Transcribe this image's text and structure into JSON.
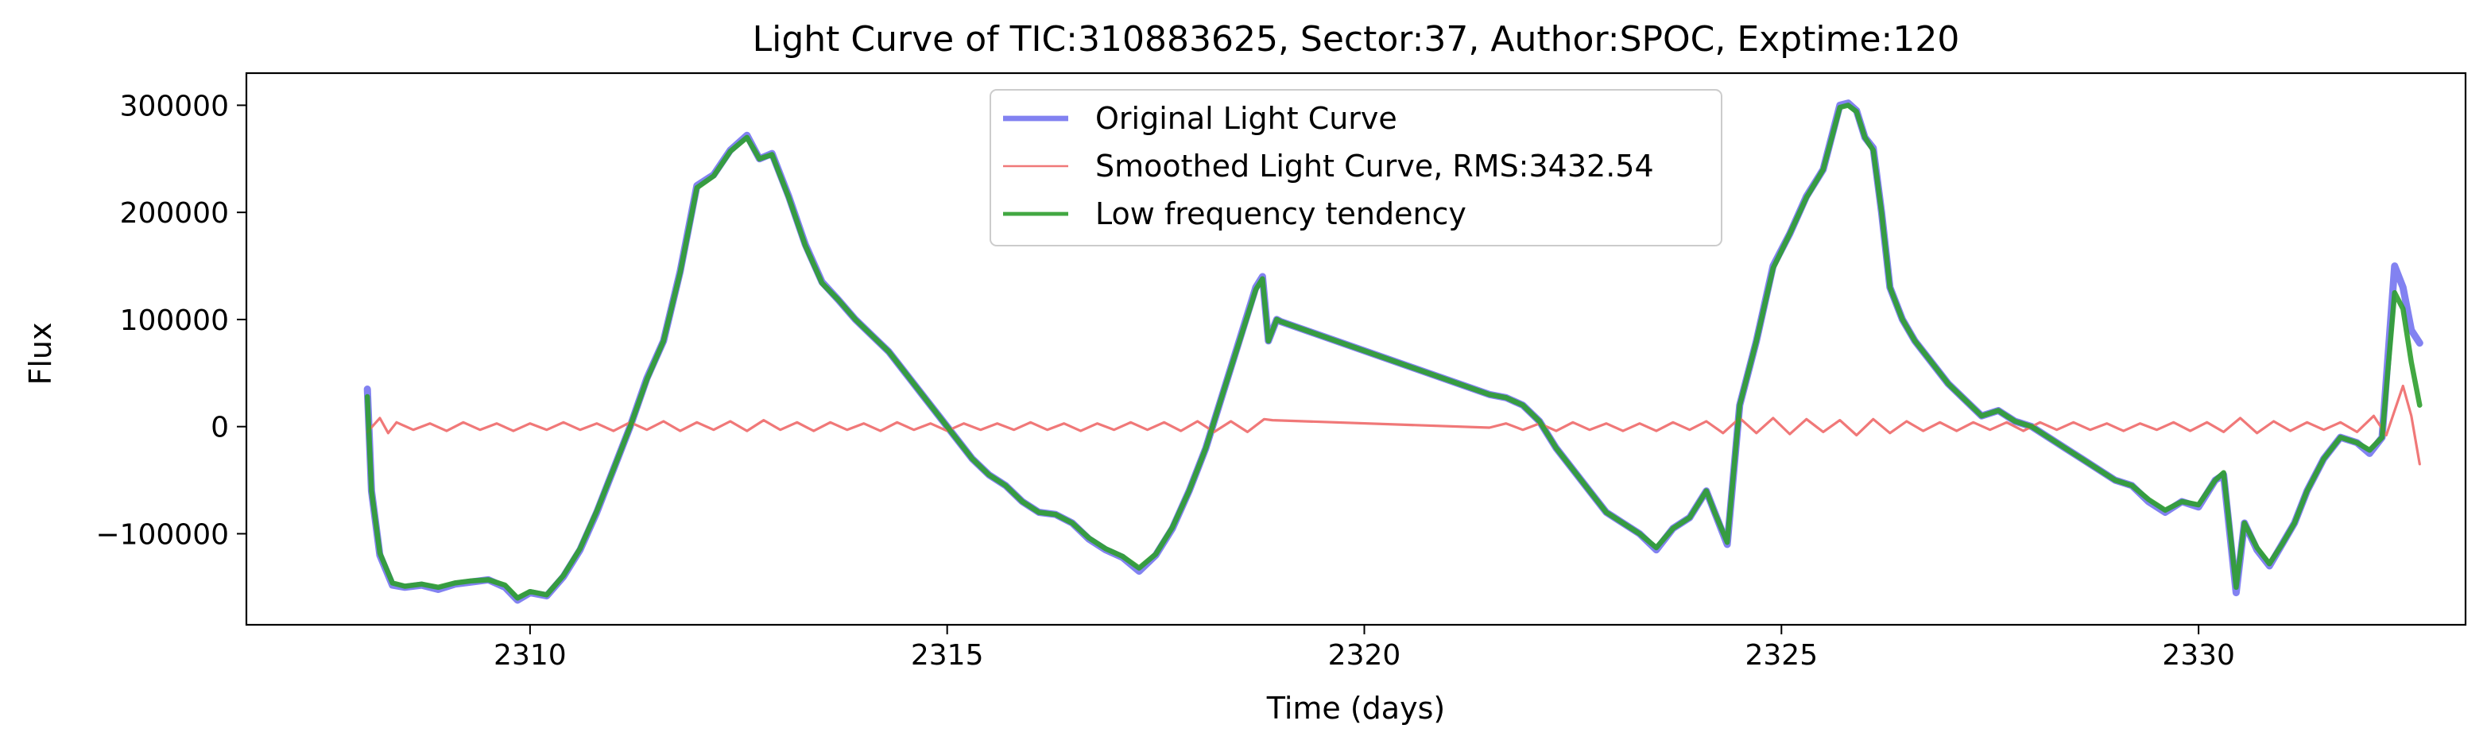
{
  "chart_data": {
    "type": "line",
    "title": "Light Curve of TIC:310883625, Sector:37, Author:SPOC, Exptime:120",
    "xlabel": "Time (days)",
    "ylabel": "Flux",
    "xlim": [
      2306.6,
      2333.2
    ],
    "ylim": [
      -185000,
      330000
    ],
    "xticks": [
      2310,
      2315,
      2320,
      2325,
      2330
    ],
    "xtick_labels": [
      "2310",
      "2315",
      "2320",
      "2325",
      "2330"
    ],
    "yticks": [
      -100000,
      0,
      100000,
      200000,
      300000
    ],
    "ytick_labels": [
      "−100000",
      "0",
      "100000",
      "200000",
      "300000"
    ],
    "grid": false,
    "legend_position": "top-center",
    "series": [
      {
        "name": "Original Light Curve",
        "color": "#7b7bf0",
        "style": "thick",
        "x": [
          2308.05,
          2308.1,
          2308.2,
          2308.35,
          2308.5,
          2308.7,
          2308.9,
          2309.1,
          2309.3,
          2309.5,
          2309.7,
          2309.85,
          2310.0,
          2310.2,
          2310.4,
          2310.6,
          2310.8,
          2311.0,
          2311.2,
          2311.4,
          2311.6,
          2311.8,
          2312.0,
          2312.2,
          2312.4,
          2312.6,
          2312.75,
          2312.9,
          2313.1,
          2313.3,
          2313.5,
          2313.7,
          2313.9,
          2314.1,
          2314.3,
          2314.5,
          2314.7,
          2314.9,
          2315.1,
          2315.3,
          2315.5,
          2315.7,
          2315.9,
          2316.1,
          2316.3,
          2316.5,
          2316.7,
          2316.9,
          2317.1,
          2317.3,
          2317.5,
          2317.7,
          2317.9,
          2318.1,
          2318.3,
          2318.5,
          2318.7,
          2318.78,
          2318.85,
          2318.95,
          2319.0,
          2321.5,
          2321.7,
          2321.9,
          2322.1,
          2322.3,
          2322.5,
          2322.7,
          2322.9,
          2323.1,
          2323.3,
          2323.5,
          2323.7,
          2323.9,
          2324.1,
          2324.2,
          2324.35,
          2324.5,
          2324.7,
          2324.9,
          2325.1,
          2325.3,
          2325.5,
          2325.7,
          2325.8,
          2325.9,
          2326.0,
          2326.1,
          2326.2,
          2326.3,
          2326.45,
          2326.6,
          2326.8,
          2327.0,
          2327.2,
          2327.4,
          2327.6,
          2327.8,
          2328.0,
          2328.2,
          2328.4,
          2328.6,
          2328.8,
          2329.0,
          2329.2,
          2329.4,
          2329.6,
          2329.8,
          2330.0,
          2330.2,
          2330.3,
          2330.45,
          2330.55,
          2330.7,
          2330.85,
          2331.0,
          2331.15,
          2331.3,
          2331.5,
          2331.7,
          2331.9,
          2332.05,
          2332.2,
          2332.35,
          2332.45,
          2332.55,
          2332.65
        ],
        "y": [
          35000,
          -60000,
          -120000,
          -148000,
          -150000,
          -148000,
          -152000,
          -147000,
          -145000,
          -143000,
          -150000,
          -162000,
          -155000,
          -158000,
          -140000,
          -115000,
          -80000,
          -40000,
          0,
          45000,
          80000,
          145000,
          225000,
          235000,
          258000,
          272000,
          250000,
          255000,
          215000,
          170000,
          135000,
          118000,
          100000,
          85000,
          70000,
          50000,
          30000,
          10000,
          -10000,
          -30000,
          -45000,
          -55000,
          -70000,
          -80000,
          -82000,
          -90000,
          -105000,
          -115000,
          -122000,
          -135000,
          -120000,
          -95000,
          -60000,
          -20000,
          30000,
          80000,
          130000,
          140000,
          80000,
          100000,
          98000,
          30000,
          27000,
          20000,
          5000,
          -20000,
          -40000,
          -60000,
          -80000,
          -90000,
          -100000,
          -115000,
          -95000,
          -85000,
          -60000,
          -80000,
          -110000,
          20000,
          80000,
          150000,
          180000,
          215000,
          240000,
          300000,
          302000,
          295000,
          270000,
          260000,
          200000,
          130000,
          100000,
          80000,
          60000,
          40000,
          25000,
          10000,
          15000,
          5000,
          0,
          -10000,
          -20000,
          -30000,
          -40000,
          -50000,
          -55000,
          -70000,
          -80000,
          -70000,
          -75000,
          -50000,
          -45000,
          -155000,
          -90000,
          -115000,
          -130000,
          -110000,
          -90000,
          -60000,
          -30000,
          -10000,
          -15000,
          -25000,
          -10000,
          150000,
          130000,
          90000,
          78000
        ]
      },
      {
        "name": "Smoothed Light Curve, RMS:3432.54",
        "color": "#f07878",
        "style": "thin",
        "x": [
          2308.05,
          2308.2,
          2308.3,
          2308.4,
          2308.6,
          2308.8,
          2309.0,
          2309.2,
          2309.4,
          2309.6,
          2309.8,
          2310.0,
          2310.2,
          2310.4,
          2310.6,
          2310.8,
          2311.0,
          2311.2,
          2311.4,
          2311.6,
          2311.8,
          2312.0,
          2312.2,
          2312.4,
          2312.6,
          2312.8,
          2313.0,
          2313.2,
          2313.4,
          2313.6,
          2313.8,
          2314.0,
          2314.2,
          2314.4,
          2314.6,
          2314.8,
          2315.0,
          2315.2,
          2315.4,
          2315.6,
          2315.8,
          2316.0,
          2316.2,
          2316.4,
          2316.6,
          2316.8,
          2317.0,
          2317.2,
          2317.4,
          2317.6,
          2317.8,
          2318.0,
          2318.2,
          2318.4,
          2318.6,
          2318.8,
          2318.9,
          2321.5,
          2321.7,
          2321.9,
          2322.1,
          2322.3,
          2322.5,
          2322.7,
          2322.9,
          2323.1,
          2323.3,
          2323.5,
          2323.7,
          2323.9,
          2324.1,
          2324.3,
          2324.5,
          2324.7,
          2324.9,
          2325.1,
          2325.3,
          2325.5,
          2325.7,
          2325.9,
          2326.1,
          2326.3,
          2326.5,
          2326.7,
          2326.9,
          2327.1,
          2327.3,
          2327.5,
          2327.7,
          2327.9,
          2328.1,
          2328.3,
          2328.5,
          2328.7,
          2328.9,
          2329.1,
          2329.3,
          2329.5,
          2329.7,
          2329.9,
          2330.1,
          2330.3,
          2330.5,
          2330.7,
          2330.9,
          2331.1,
          2331.3,
          2331.5,
          2331.7,
          2331.9,
          2332.1,
          2332.25,
          2332.35,
          2332.45,
          2332.55,
          2332.65
        ],
        "y": [
          -5000,
          8000,
          -6000,
          4000,
          -3000,
          3000,
          -4000,
          4000,
          -3000,
          3000,
          -4000,
          3000,
          -3000,
          4000,
          -3000,
          3000,
          -4000,
          4000,
          -3000,
          5000,
          -4000,
          4000,
          -3000,
          5000,
          -4000,
          6000,
          -3000,
          4000,
          -4000,
          4000,
          -3000,
          3000,
          -4000,
          4000,
          -3000,
          3000,
          -4000,
          3000,
          -3000,
          3000,
          -3000,
          4000,
          -3000,
          3000,
          -4000,
          3000,
          -3000,
          4000,
          -3000,
          4000,
          -4000,
          5000,
          -5000,
          5000,
          -5000,
          7000,
          6000,
          -1000,
          3000,
          -3000,
          3000,
          -4000,
          4000,
          -3000,
          3000,
          -4000,
          3000,
          -4000,
          4000,
          -3000,
          5000,
          -6000,
          8000,
          -6000,
          8000,
          -7000,
          7000,
          -5000,
          6000,
          -8000,
          7000,
          -6000,
          5000,
          -4000,
          4000,
          -4000,
          4000,
          -3000,
          4000,
          -4000,
          4000,
          -3000,
          4000,
          -3000,
          3000,
          -4000,
          3000,
          -3000,
          4000,
          -4000,
          4000,
          -5000,
          8000,
          -6000,
          5000,
          -4000,
          4000,
          -3000,
          4000,
          -5000,
          10000,
          -8000,
          15000,
          38000,
          10000,
          -35000
        ]
      },
      {
        "name": "Low frequency tendency",
        "color": "#2e9e2e",
        "style": "medium",
        "x": [
          2308.05,
          2308.1,
          2308.2,
          2308.35,
          2308.5,
          2308.7,
          2308.9,
          2309.1,
          2309.3,
          2309.5,
          2309.7,
          2309.85,
          2310.0,
          2310.2,
          2310.4,
          2310.6,
          2310.8,
          2311.0,
          2311.2,
          2311.4,
          2311.6,
          2311.8,
          2312.0,
          2312.2,
          2312.4,
          2312.6,
          2312.75,
          2312.9,
          2313.1,
          2313.3,
          2313.5,
          2313.7,
          2313.9,
          2314.1,
          2314.3,
          2314.5,
          2314.7,
          2314.9,
          2315.1,
          2315.3,
          2315.5,
          2315.7,
          2315.9,
          2316.1,
          2316.3,
          2316.5,
          2316.7,
          2316.9,
          2317.1,
          2317.3,
          2317.5,
          2317.7,
          2317.9,
          2318.1,
          2318.3,
          2318.5,
          2318.7,
          2318.78,
          2318.85,
          2318.95,
          2319.0,
          2321.5,
          2321.7,
          2321.9,
          2322.1,
          2322.3,
          2322.5,
          2322.7,
          2322.9,
          2323.1,
          2323.3,
          2323.5,
          2323.7,
          2323.9,
          2324.1,
          2324.2,
          2324.35,
          2324.5,
          2324.7,
          2324.9,
          2325.1,
          2325.3,
          2325.5,
          2325.7,
          2325.8,
          2325.9,
          2326.0,
          2326.1,
          2326.2,
          2326.3,
          2326.45,
          2326.6,
          2326.8,
          2327.0,
          2327.2,
          2327.4,
          2327.6,
          2327.8,
          2328.0,
          2328.2,
          2328.4,
          2328.6,
          2328.8,
          2329.0,
          2329.2,
          2329.4,
          2329.6,
          2329.8,
          2330.0,
          2330.2,
          2330.3,
          2330.45,
          2330.55,
          2330.7,
          2330.85,
          2331.0,
          2331.15,
          2331.3,
          2331.5,
          2331.7,
          2331.9,
          2332.05,
          2332.2,
          2332.35,
          2332.45,
          2332.55,
          2332.65
        ],
        "y": [
          28000,
          -60000,
          -118000,
          -146000,
          -149000,
          -147000,
          -150000,
          -146000,
          -144000,
          -143000,
          -148000,
          -160000,
          -154000,
          -157000,
          -139000,
          -114000,
          -79000,
          -40000,
          0,
          44000,
          80000,
          144000,
          223000,
          234000,
          257000,
          270000,
          250000,
          254000,
          214000,
          169000,
          134000,
          118000,
          100000,
          85000,
          70000,
          50000,
          30000,
          10000,
          -10000,
          -30000,
          -45000,
          -55000,
          -70000,
          -80000,
          -82000,
          -90000,
          -104000,
          -114000,
          -121000,
          -132000,
          -119000,
          -94000,
          -60000,
          -20000,
          30000,
          79000,
          128000,
          138000,
          80000,
          100000,
          98000,
          30000,
          27000,
          20000,
          5000,
          -20000,
          -40000,
          -60000,
          -80000,
          -90000,
          -100000,
          -113000,
          -95000,
          -85000,
          -60000,
          -80000,
          -108000,
          20000,
          80000,
          148000,
          180000,
          214000,
          240000,
          298000,
          300000,
          294000,
          270000,
          258000,
          200000,
          130000,
          100000,
          80000,
          60000,
          40000,
          25000,
          10000,
          15000,
          5000,
          0,
          -10000,
          -20000,
          -30000,
          -40000,
          -50000,
          -55000,
          -68000,
          -78000,
          -70000,
          -73000,
          -50000,
          -43000,
          -150000,
          -90000,
          -113000,
          -128000,
          -110000,
          -90000,
          -60000,
          -30000,
          -10000,
          -15000,
          -22000,
          -10000,
          125000,
          110000,
          60000,
          20000
        ]
      }
    ]
  }
}
